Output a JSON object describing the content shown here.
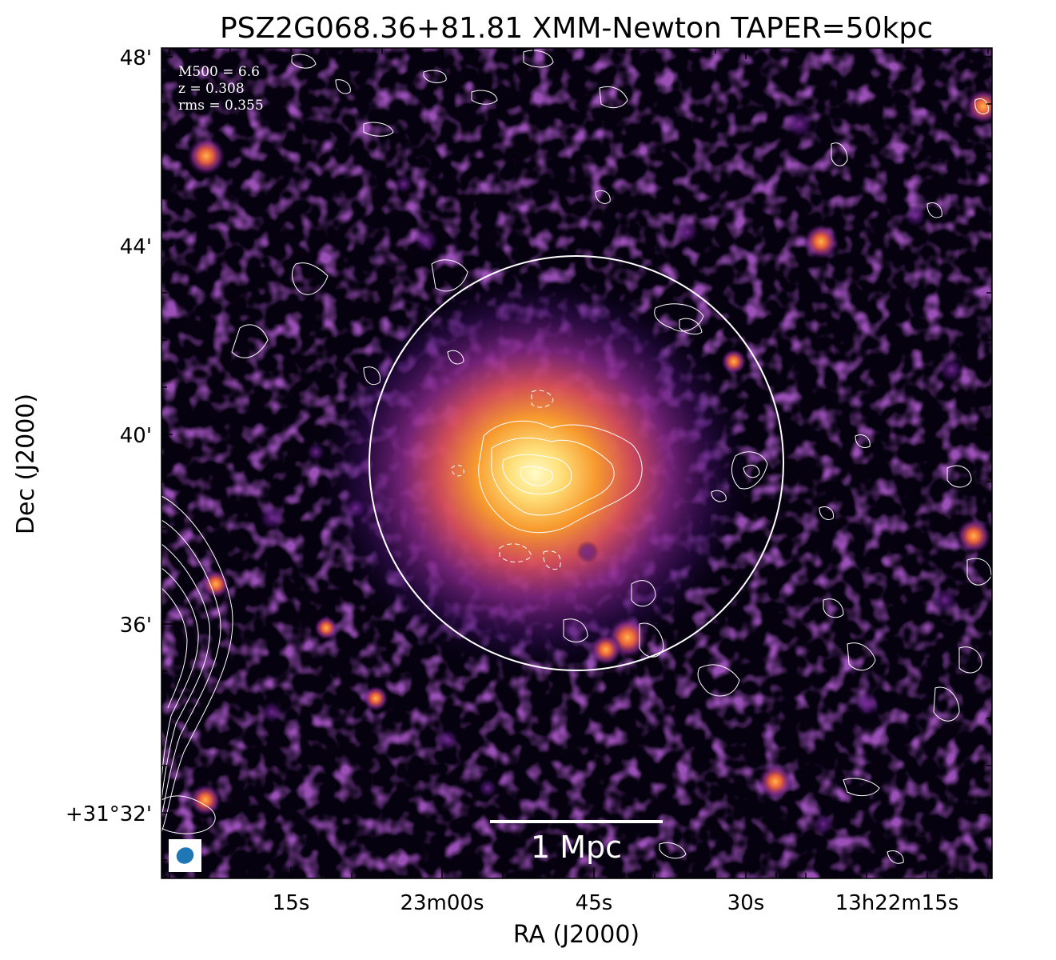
{
  "title": "PSZ2G068.36+81.81 XMM-Newton TAPER=50kpc",
  "axes": {
    "xlabel": "RA (J2000)",
    "ylabel": "Dec (J2000)",
    "xticks": [
      "15s",
      "23m00s",
      "45s",
      "30s",
      "13h22m15s"
    ],
    "yticks": [
      "48'",
      "44'",
      "40'",
      "36'",
      "+31°32'"
    ]
  },
  "info": {
    "m500": "M500 = 6.6",
    "z": "z = 0.308",
    "rms": "rms = 0.355"
  },
  "scalebar": {
    "label": "1 Mpc"
  },
  "colors": {
    "background": "#05010f",
    "cluster_core": "#fff6b0",
    "cluster_mid": "#f48a2a",
    "cluster_outer": "#8a2a8c",
    "contour": "#ffffff",
    "beam": "#1f77b4"
  }
}
